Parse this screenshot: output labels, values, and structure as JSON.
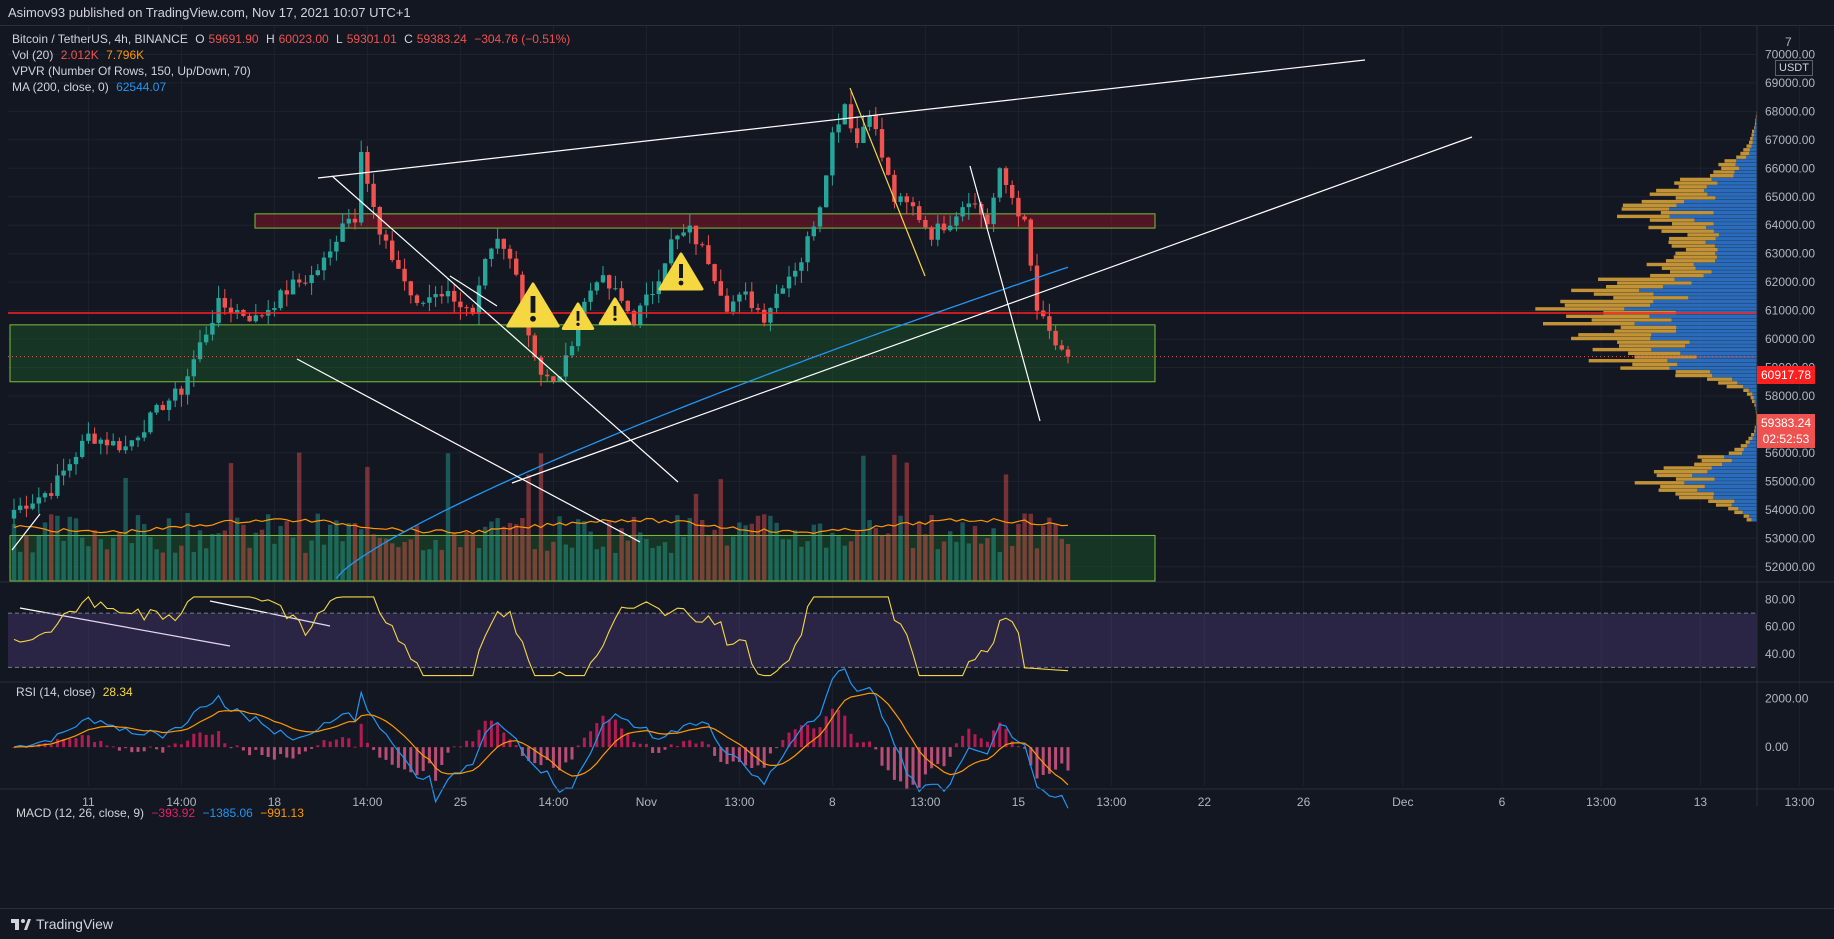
{
  "header": {
    "published": "Asimov93 published on TradingView.com, Nov 17, 2021 10:07 UTC+1"
  },
  "legend": {
    "symbol": "Bitcoin / TetherUS, 4h, BINANCE",
    "o_label": "O",
    "o": "59691.90",
    "h_label": "H",
    "h": "60023.00",
    "l_label": "L",
    "l": "59301.01",
    "c_label": "C",
    "c": "59383.24",
    "change": "−304.76 (−0.51%)",
    "vol_label": "Vol (20)",
    "vol1": "2.012K",
    "vol2": "7.796K",
    "vpvr_label": "VPVR (Number Of Rows, 150, Up/Down, 70)",
    "ma_label": "MA (200, close, 0)",
    "ma_value": "62544.07",
    "rsi_label": "RSI (14, close)",
    "rsi_value": "28.34",
    "macd_label": "MACD (12, 26, close, 9)",
    "macd_v1": "−393.92",
    "macd_v2": "−1385.06",
    "macd_v3": "−991.13"
  },
  "price_axis": {
    "currency": "USDT",
    "top_partial": "7",
    "current_price": "59383.24",
    "countdown": "02:52:53",
    "line_price": "60917.78"
  },
  "footer": {
    "brand": "TradingView"
  },
  "colors": {
    "background": "#131722",
    "up": "#26a69a",
    "down": "#ef5350",
    "red_line": "#ff1f1f",
    "ma": "#2196f3",
    "rsi": "#f5d742",
    "vpvr_up": "#2f7bd6",
    "vpvr_down": "#e0a83a"
  },
  "chart_data": [
    {
      "type": "candlestick",
      "title": "",
      "ylim": [
        51500,
        71000
      ],
      "y_ticks": [
        52000,
        53000,
        54000,
        55000,
        56000,
        57000,
        58000,
        59000,
        60000,
        61000,
        62000,
        63000,
        64000,
        65000,
        66000,
        67000,
        68000,
        69000,
        70000
      ],
      "y_tick_labels": [
        "52000.00",
        "53000.00",
        "54000.00",
        "55000.00",
        "56000.00",
        "57000.00",
        "58000.00",
        "59000.00",
        "60000.00",
        "61000.00",
        "62000.00",
        "63000.00",
        "64000.00",
        "65000.00",
        "66000.00",
        "67000.00",
        "68000.00",
        "69000.00",
        "70000.00"
      ],
      "x_tick_labels": [
        "11",
        "14:00",
        "18",
        "14:00",
        "25",
        "14:00",
        "Nov",
        "13:00",
        "8",
        "13:00",
        "15",
        "13:00",
        "22",
        "26",
        "Dec",
        "6",
        "13:00",
        "13",
        "13:00"
      ],
      "x_tick_candle_index": [
        12,
        27,
        42,
        57,
        72,
        87,
        102,
        117,
        132,
        147,
        162,
        177,
        192,
        208,
        224,
        240,
        256,
        272,
        288
      ],
      "close_anchors": [
        [
          0,
          54000
        ],
        [
          6,
          54700
        ],
        [
          12,
          56600
        ],
        [
          18,
          56200
        ],
        [
          24,
          57700
        ],
        [
          27,
          58200
        ],
        [
          30,
          59800
        ],
        [
          33,
          61200
        ],
        [
          36,
          61000
        ],
        [
          39,
          60700
        ],
        [
          42,
          61300
        ],
        [
          45,
          61900
        ],
        [
          48,
          62200
        ],
        [
          51,
          63000
        ],
        [
          53,
          64200
        ],
        [
          55,
          64300
        ],
        [
          56,
          66800
        ],
        [
          57,
          65500
        ],
        [
          59,
          63600
        ],
        [
          62,
          62500
        ],
        [
          65,
          61100
        ],
        [
          68,
          61700
        ],
        [
          71,
          61500
        ],
        [
          74,
          60700
        ],
        [
          76,
          62600
        ],
        [
          78,
          63400
        ],
        [
          81,
          62500
        ],
        [
          83,
          60200
        ],
        [
          85,
          58800
        ],
        [
          87,
          58400
        ],
        [
          89,
          59200
        ],
        [
          91,
          60800
        ],
        [
          94,
          62200
        ],
        [
          97,
          61600
        ],
        [
          100,
          60700
        ],
        [
          103,
          61700
        ],
        [
          106,
          63400
        ],
        [
          109,
          63800
        ],
        [
          112,
          62800
        ],
        [
          115,
          61200
        ],
        [
          118,
          61500
        ],
        [
          121,
          60800
        ],
        [
          124,
          62000
        ],
        [
          127,
          62800
        ],
        [
          130,
          64800
        ],
        [
          132,
          67200
        ],
        [
          134,
          68300
        ],
        [
          136,
          66900
        ],
        [
          138,
          68100
        ],
        [
          140,
          66400
        ],
        [
          142,
          64900
        ],
        [
          145,
          64600
        ],
        [
          148,
          63700
        ],
        [
          151,
          64200
        ],
        [
          154,
          65000
        ],
        [
          157,
          64100
        ],
        [
          159,
          65800
        ],
        [
          161,
          65000
        ],
        [
          163,
          64000
        ],
        [
          165,
          61000
        ],
        [
          167,
          60200
        ],
        [
          169,
          59400
        ],
        [
          170,
          59383
        ]
      ],
      "annotations": {
        "resistance_zone": [
          63900,
          64400
        ],
        "support_zone": [
          58500,
          60500
        ],
        "volume_zone_top": 53100,
        "horizontal_level": 60917.78,
        "warning_icons": 4
      }
    },
    {
      "type": "line",
      "title": "",
      "name": "RSI (14, close)",
      "ylim": [
        20,
        90
      ],
      "y_tick_labels": [
        "80.00",
        "60.00",
        "40.00"
      ],
      "bands": [
        30,
        70
      ],
      "last": 28.34
    },
    {
      "type": "line",
      "title": "",
      "name": "MACD (12, 26, close, 9)",
      "ylim": [
        -1600,
        2600
      ],
      "y_tick_labels": [
        "2000.00",
        "0.00"
      ],
      "macd_last": -1385.06,
      "signal_last": -991.13,
      "hist_last": -393.92
    }
  ]
}
